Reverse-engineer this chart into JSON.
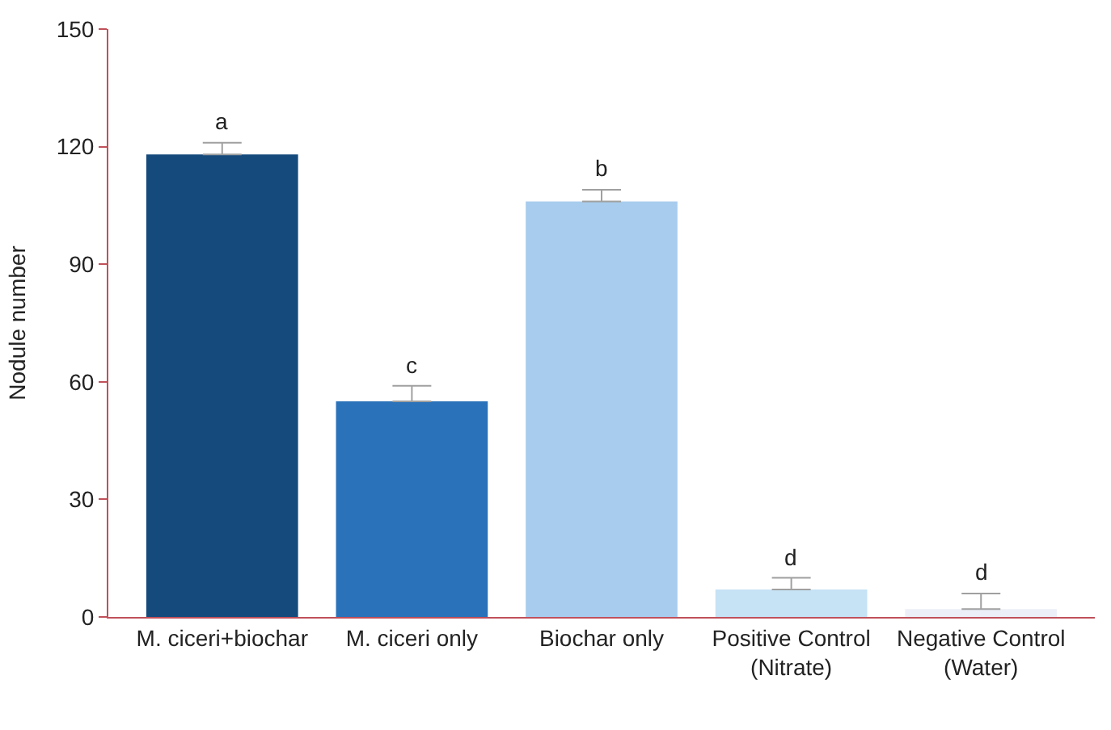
{
  "chart_data": {
    "type": "bar",
    "ylabel": "Nodule number",
    "categories": [
      "M. ciceri+biochar",
      "M. ciceri only",
      "Biochar only",
      "Positive Control\n(Nitrate)",
      "Negative Control\n(Water)"
    ],
    "values": [
      118,
      55,
      106,
      7,
      2
    ],
    "colors": [
      "#154a7c",
      "#2a72b9",
      "#a7cced",
      "#c6e2f5",
      "#eceff7"
    ],
    "errors": [
      [
        118,
        121
      ],
      [
        55,
        59
      ],
      [
        106,
        109
      ],
      [
        7,
        10
      ],
      [
        2,
        6
      ]
    ],
    "ylim": [
      0,
      150
    ],
    "yticks": [
      0,
      30,
      60,
      90,
      120,
      150
    ],
    "annotations": [
      {
        "text": "a",
        "x": "M. ciceri+biochar",
        "y": 121
      },
      {
        "text": "c",
        "x": "M. ciceri only",
        "y": 59
      },
      {
        "text": "b",
        "x": "Biochar only",
        "y": 109
      },
      {
        "text": "d",
        "x": "Positive Control\n(Nitrate)",
        "y": 10
      },
      {
        "text": "d",
        "x": "Negative Control\n(Water)",
        "y": 6
      }
    ]
  }
}
